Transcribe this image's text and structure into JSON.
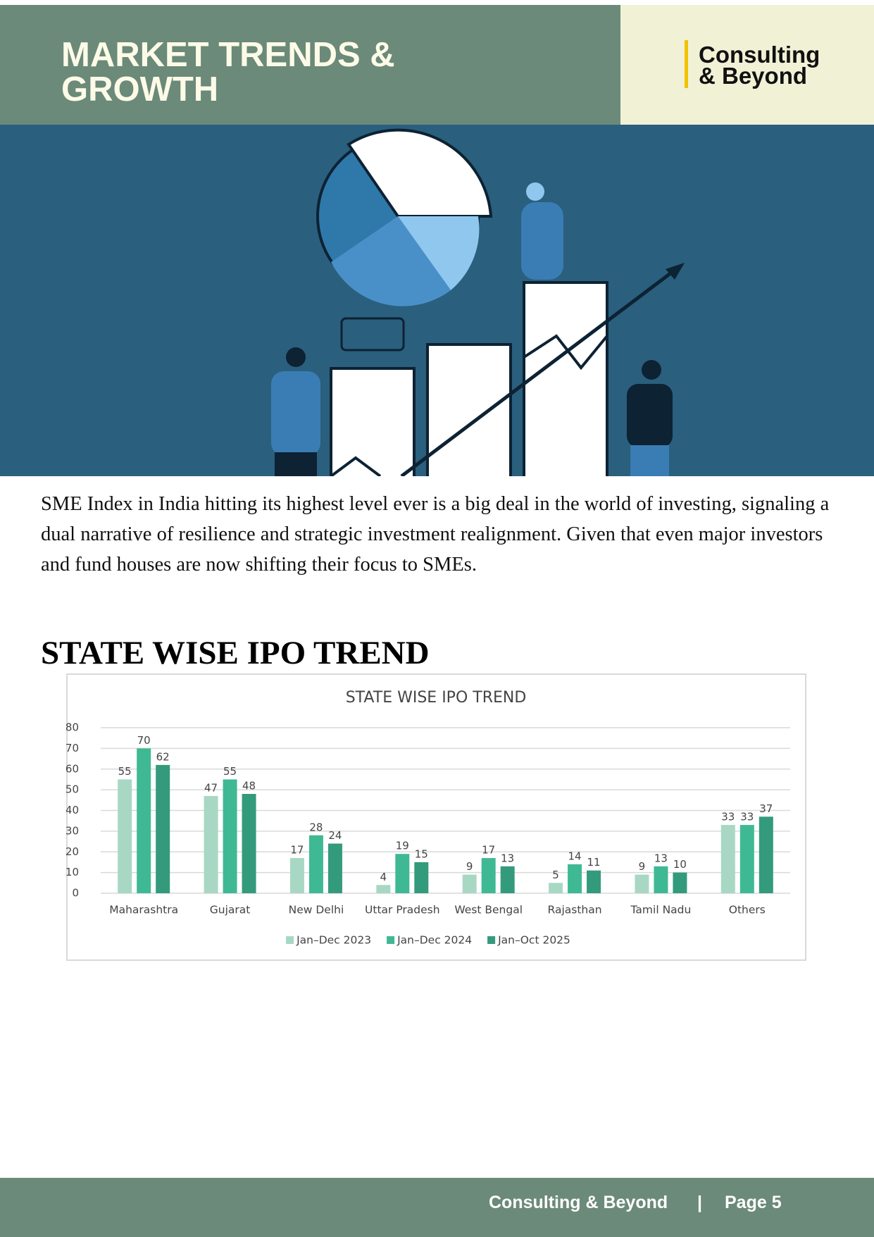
{
  "header": {
    "title_lines": [
      "MARKET TRENDS &",
      "GROWTH"
    ],
    "logo_lines": [
      "Consulting",
      "& Beyond"
    ]
  },
  "body": {
    "paragraph": "SME Index in India hitting its highest level ever is a big deal in the world of investing, signaling a dual narrative of resilience and strategic investment realignment. Given that even major investors and fund houses are now shifting their focus to SMEs.",
    "heading": "STATE WISE IPO TREND"
  },
  "chart_data": {
    "type": "bar",
    "title": "STATE WISE IPO TREND",
    "categories": [
      "Maharashtra",
      "Gujarat",
      "New Delhi",
      "Uttar Pradesh",
      "West Bengal",
      "Rajasthan",
      "Tamil Nadu",
      "Others"
    ],
    "series": [
      {
        "name": "Jan–Dec 2023",
        "color": "#a8d8c4",
        "values": [
          55,
          47,
          17,
          4,
          9,
          5,
          9,
          33
        ]
      },
      {
        "name": "Jan–Dec 2024",
        "color": "#3fb994",
        "values": [
          70,
          55,
          28,
          19,
          17,
          14,
          13,
          33
        ]
      },
      {
        "name": "Jan–Oct 2025",
        "color": "#349a7c",
        "values": [
          62,
          48,
          24,
          15,
          13,
          11,
          10,
          37
        ]
      }
    ],
    "ylim": [
      0,
      80
    ],
    "yticks": [
      0,
      10,
      20,
      30,
      40,
      50,
      60,
      70,
      80
    ],
    "grid": true,
    "legend": "bottom"
  },
  "footer": {
    "brand": "Consulting & Beyond",
    "separator": "|",
    "page": "Page 5"
  }
}
